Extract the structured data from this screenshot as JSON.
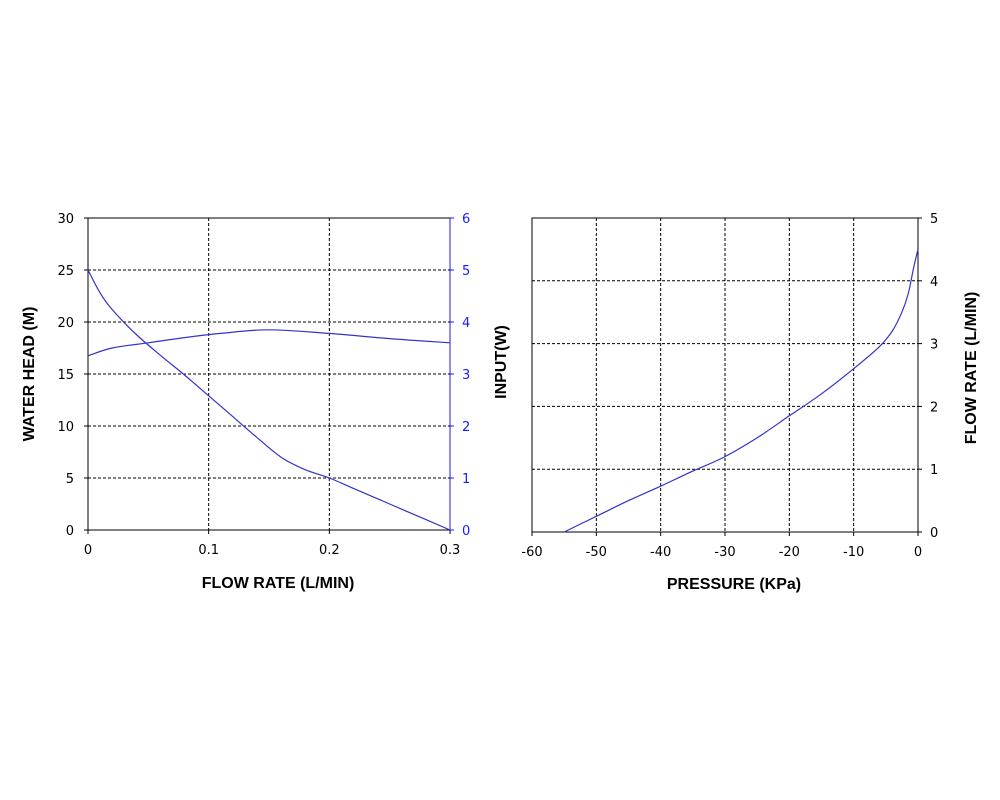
{
  "colors": {
    "series": "#3333cc",
    "right_axis_left_chart": "#1a1aff",
    "grid": "#000000",
    "axis": "#000000"
  },
  "chart_data": [
    {
      "type": "line",
      "xlabel": "FLOW RATE (L/MIN)",
      "ylabel": "WATER HEAD (M)",
      "y2label": "",
      "xlim": [
        0,
        0.3
      ],
      "ylim": [
        0,
        30
      ],
      "y2lim": [
        0,
        6
      ],
      "x_ticks": [
        "0",
        "0.1",
        "0.2",
        "0.3"
      ],
      "y_ticks": [
        "0",
        "5",
        "10",
        "15",
        "20",
        "25",
        "30"
      ],
      "y2_ticks": [
        "0",
        "1",
        "2",
        "3",
        "4",
        "5",
        "6"
      ],
      "grid": true,
      "series": [
        {
          "axis": "left",
          "points": [
            [
              0,
              25
            ],
            [
              0.01,
              22.8
            ],
            [
              0.02,
              21.2
            ],
            [
              0.04,
              18.8
            ],
            [
              0.06,
              16.8
            ],
            [
              0.08,
              14.9
            ],
            [
              0.1,
              12.9
            ],
            [
              0.12,
              10.9
            ],
            [
              0.14,
              8.9
            ],
            [
              0.16,
              7.0
            ],
            [
              0.18,
              5.8
            ],
            [
              0.2,
              5.0
            ],
            [
              0.22,
              4.0
            ],
            [
              0.25,
              2.5
            ],
            [
              0.28,
              1.0
            ],
            [
              0.3,
              0
            ]
          ]
        },
        {
          "axis": "right",
          "points": [
            [
              0,
              3.35
            ],
            [
              0.02,
              3.5
            ],
            [
              0.05,
              3.6
            ],
            [
              0.08,
              3.7
            ],
            [
              0.11,
              3.78
            ],
            [
              0.15,
              3.85
            ],
            [
              0.2,
              3.78
            ],
            [
              0.25,
              3.68
            ],
            [
              0.3,
              3.6
            ]
          ]
        }
      ]
    },
    {
      "type": "line",
      "xlabel": "PRESSURE (KPa)",
      "ylabel": "INPUT(W)",
      "y2label": "FLOW RATE (L/MIN)",
      "xlim": [
        -60,
        0
      ],
      "ylim": [
        0,
        5
      ],
      "y2lim": [
        0,
        5
      ],
      "x_ticks": [
        "-60",
        "-50",
        "-40",
        "-30",
        "-20",
        "-10",
        "0"
      ],
      "y_ticks": [],
      "y2_ticks": [
        "0",
        "1",
        "2",
        "3",
        "4",
        "5"
      ],
      "grid": true,
      "series": [
        {
          "axis": "right",
          "points": [
            [
              -55,
              0
            ],
            [
              -50,
              0.25
            ],
            [
              -45,
              0.5
            ],
            [
              -40,
              0.73
            ],
            [
              -35,
              0.97
            ],
            [
              -30,
              1.2
            ],
            [
              -25,
              1.5
            ],
            [
              -20,
              1.85
            ],
            [
              -15,
              2.2
            ],
            [
              -10,
              2.6
            ],
            [
              -6,
              2.95
            ],
            [
              -4,
              3.2
            ],
            [
              -2.5,
              3.5
            ],
            [
              -1.5,
              3.8
            ],
            [
              -0.7,
              4.2
            ],
            [
              0,
              4.5
            ]
          ]
        }
      ]
    }
  ]
}
